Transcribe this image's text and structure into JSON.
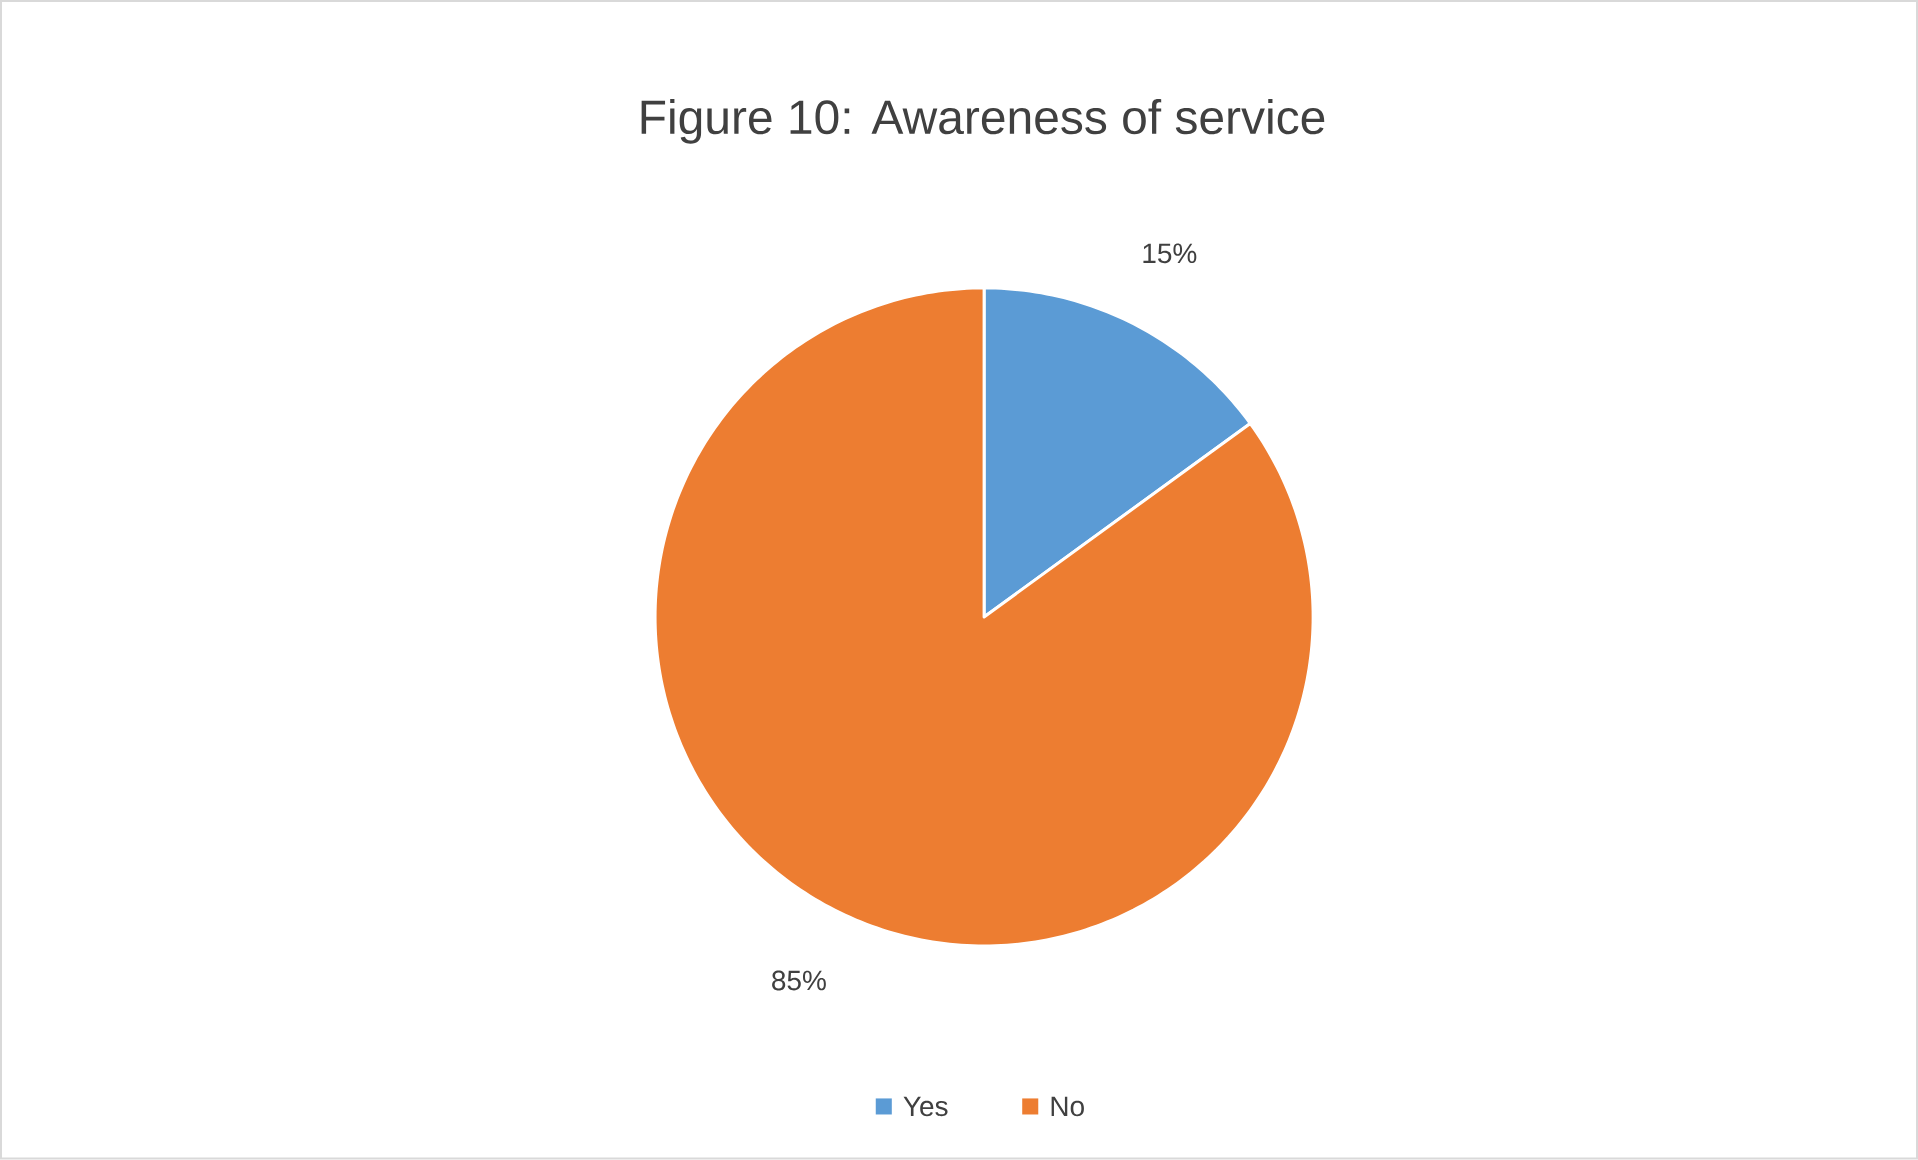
{
  "chart_data": {
    "type": "pie",
    "title": "Figure 10:  Awareness of service",
    "categories": [
      "Yes",
      "No"
    ],
    "values": [
      15,
      85
    ],
    "colors": [
      "#5b9bd5",
      "#ed7d31"
    ],
    "value_labels": [
      "15%",
      "85%"
    ],
    "legend": "bottom"
  }
}
